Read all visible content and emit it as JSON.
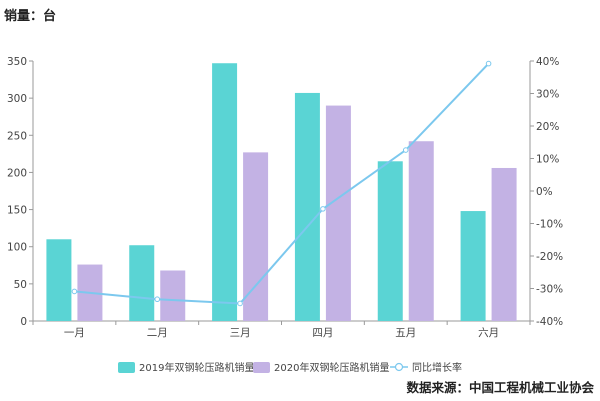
{
  "chart_data": {
    "type": "bar",
    "unit_label": "销量：台",
    "source": "数据来源：中国工程机械工业协会",
    "categories": [
      "一月",
      "二月",
      "三月",
      "四月",
      "五月",
      "六月"
    ],
    "series": [
      {
        "name": "2019年双钢轮压路机销量",
        "type": "bar",
        "axis": "left",
        "color": "#5ad4d4",
        "values": [
          110,
          102,
          347,
          307,
          215,
          148
        ]
      },
      {
        "name": "2020年双钢轮压路机销量",
        "type": "bar",
        "axis": "left",
        "color": "#c3b2e4",
        "values": [
          76,
          68,
          227,
          290,
          242,
          206
        ]
      },
      {
        "name": "同比增长率",
        "type": "line",
        "axis": "right",
        "color": "#7cc8ee",
        "values": [
          -30.9,
          -33.3,
          -34.6,
          -5.5,
          12.6,
          39.2
        ]
      }
    ],
    "y_left": {
      "min": 0,
      "max": 350,
      "ticks": [
        "0",
        "50",
        "100",
        "150",
        "200",
        "250",
        "300",
        "350"
      ]
    },
    "y_right": {
      "min": -40,
      "max": 40,
      "ticks": [
        "-40%",
        "-30%",
        "-20%",
        "-10%",
        "0%",
        "10%",
        "20%",
        "30%",
        "40%"
      ]
    },
    "grid": false,
    "legend_position": "bottom"
  }
}
